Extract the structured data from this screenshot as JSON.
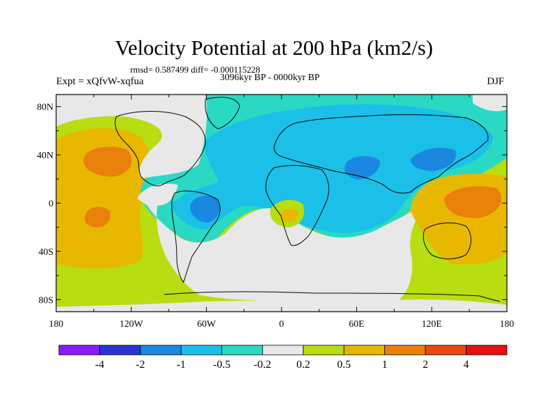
{
  "title": "Velocity Potential at 200 hPa (km2/s)",
  "stats": "rmsd= 0.587499 diff= -0.000115228",
  "period": "3096kyr BP - 0000kyr BP",
  "experiment": "Expt = xQfvW-xqfua",
  "season": "DJF",
  "chart_data": {
    "type": "map",
    "variable": "Velocity Potential at 200 hPa",
    "units": "km2/s",
    "x_ticks": [
      {
        "lon": -180,
        "label": "180"
      },
      {
        "lon": -120,
        "label": "120W"
      },
      {
        "lon": -60,
        "label": "60W"
      },
      {
        "lon": 0,
        "label": "0"
      },
      {
        "lon": 60,
        "label": "60E"
      },
      {
        "lon": 120,
        "label": "120E"
      },
      {
        "lon": 180,
        "label": "180"
      }
    ],
    "y_ticks": [
      {
        "lat": 80,
        "label": "80N"
      },
      {
        "lat": 40,
        "label": "40N"
      },
      {
        "lat": 0,
        "label": "0"
      },
      {
        "lat": -40,
        "label": "40S"
      },
      {
        "lat": -80,
        "label": "80S"
      }
    ],
    "lon_range": [
      -180,
      180
    ],
    "lat_range": [
      -90,
      90
    ]
  },
  "colorbar": {
    "colors": [
      "#8c1aff",
      "#2a33d4",
      "#1a88e0",
      "#1ac0e8",
      "#2ad9c4",
      "#e8e8e8",
      "#b8dd10",
      "#e8b800",
      "#e8800a",
      "#e84a10",
      "#e81010"
    ],
    "labels": [
      "-4",
      "-2",
      "-1",
      "-0.5",
      "-0.2",
      "0.2",
      "0.5",
      "1",
      "2",
      "4"
    ]
  }
}
